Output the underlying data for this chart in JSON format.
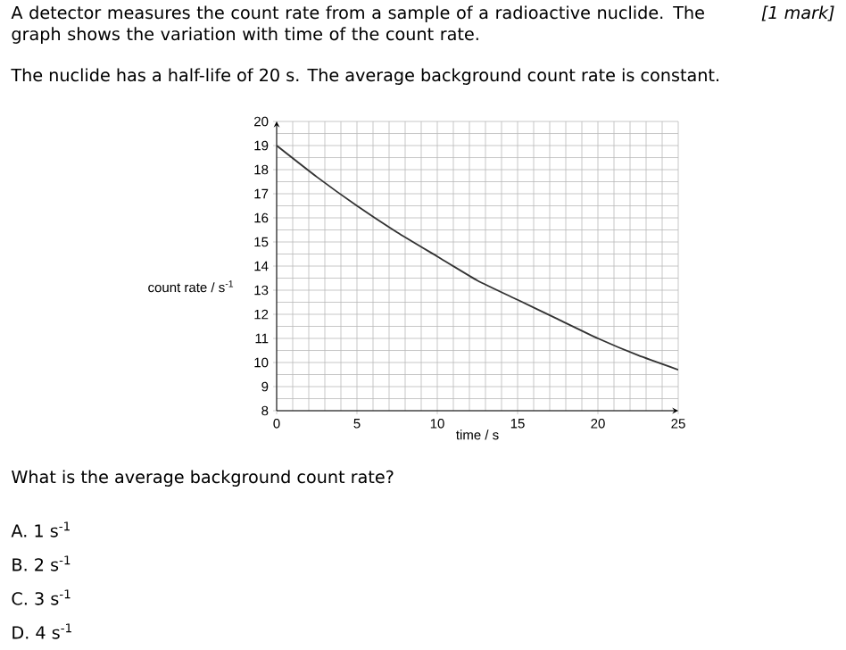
{
  "chart_data": {
    "type": "line",
    "title": "A detector measures the count rate from a sample of a radioactive nuclide. The graph shows the variation with time of the count rate.",
    "subtitle": "The nuclide has a half-life of 20 s. The average background count rate is constant.",
    "xlabel": "time / s",
    "ylabel": "count rate / s$^{-1}$",
    "annotations": [
      "[1 mark]",
      "What is the average background count rate?",
      "A.  1 s$^{-1}$",
      "B.  2 s$^{-1}$",
      "C.  3 s$^{-1}$",
      "D.  4 s$^{-1}$"
    ],
    "series": [
      {
        "color": "#333333",
        "x": [
          0,
          2.5,
          5,
          7.5,
          10,
          12.5,
          15,
          17.5,
          20,
          22.5,
          25
        ],
        "values": [
          19,
          17.7,
          16.5,
          15.4,
          14.4,
          13.4,
          12.6,
          11.8,
          11.0,
          10.3,
          9.7
        ]
      }
    ],
    "xlim": [
      0,
      25
    ],
    "ylim": [
      8,
      20
    ],
    "xticks": [
      0,
      5,
      10,
      15,
      20,
      25
    ],
    "yticks": [
      8,
      9,
      10,
      11,
      12,
      13,
      14,
      15,
      16,
      17,
      18,
      19,
      20
    ],
    "grid": true,
    "marker": "none",
    "line_style": "solid"
  }
}
